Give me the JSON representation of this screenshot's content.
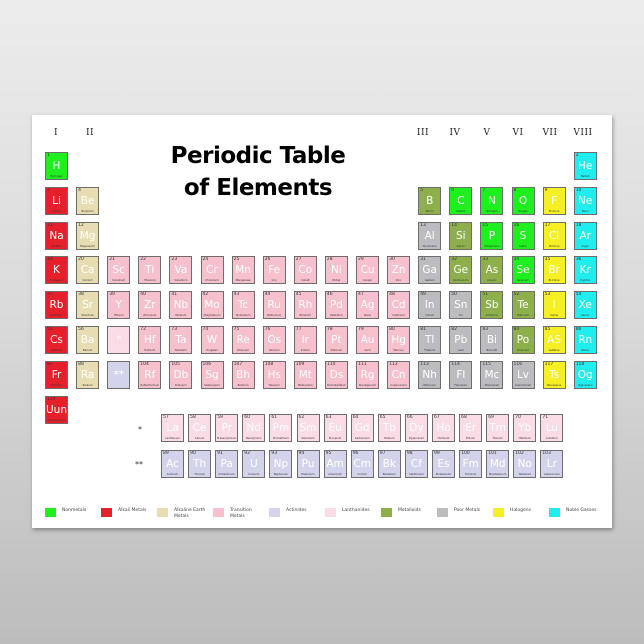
{
  "title": {
    "line1": "Periodic Table",
    "line2": "of Elements"
  },
  "groups": [
    "I",
    "II",
    "III",
    "IV",
    "V",
    "VI",
    "VII",
    "VIII"
  ],
  "colors": {
    "nonmetal": "#1fee1f",
    "alkali": "#e6202a",
    "alkaline": "#e8ddb2",
    "transition": "#f6c1cd",
    "actinide": "#d3d3ec",
    "lanthanide": "#f9dce5",
    "metalloid": "#8db04c",
    "poor": "#bcbcc0",
    "halogen": "#f6ef23",
    "noble": "#20eeee"
  },
  "legend": [
    {
      "label": "Nonmetals",
      "category": "nonmetal"
    },
    {
      "label": "Alkali Metals",
      "category": "alkali"
    },
    {
      "label": "Alkaline Earth Metals",
      "category": "alkaline"
    },
    {
      "label": "Transition Metals",
      "category": "transition"
    },
    {
      "label": "Actinides",
      "category": "actinide"
    },
    {
      "label": "Lanthanides",
      "category": "lanthanide"
    },
    {
      "label": "Metalloids",
      "category": "metalloid"
    },
    {
      "label": "Poor Metals",
      "category": "poor"
    },
    {
      "label": "Halogens",
      "category": "halogen"
    },
    {
      "label": "Noble Gasses",
      "category": "noble"
    }
  ],
  "series_markers": {
    "lanthanide": "*",
    "actinide": "**"
  },
  "elements": [
    [
      "1",
      "H",
      "Hydrogen",
      "nonmetal",
      1,
      1
    ],
    [
      "2",
      "He",
      "Helium",
      "noble",
      1,
      18
    ],
    [
      "3",
      "Li",
      "Lithium",
      "alkali",
      2,
      1
    ],
    [
      "4",
      "Be",
      "Beryllium",
      "alkaline",
      2,
      2
    ],
    [
      "5",
      "B",
      "Boron",
      "metalloid",
      2,
      13
    ],
    [
      "6",
      "C",
      "Carbon",
      "nonmetal",
      2,
      14
    ],
    [
      "7",
      "N",
      "Nitrogen",
      "nonmetal",
      2,
      15
    ],
    [
      "8",
      "O",
      "Oxygen",
      "nonmetal",
      2,
      16
    ],
    [
      "9",
      "F",
      "Fluorine",
      "halogen",
      2,
      17
    ],
    [
      "10",
      "Ne",
      "Neon",
      "noble",
      2,
      18
    ],
    [
      "11",
      "Na",
      "Sodium",
      "alkali",
      3,
      1
    ],
    [
      "12",
      "Mg",
      "Magnesium",
      "alkaline",
      3,
      2
    ],
    [
      "13",
      "Al",
      "Aluminium",
      "poor",
      3,
      13
    ],
    [
      "14",
      "Si",
      "Silicon",
      "metalloid",
      3,
      14
    ],
    [
      "15",
      "P",
      "Phosphorus",
      "nonmetal",
      3,
      15
    ],
    [
      "16",
      "S",
      "Sulfur",
      "nonmetal",
      3,
      16
    ],
    [
      "17",
      "Cl",
      "Chlorine",
      "halogen",
      3,
      17
    ],
    [
      "18",
      "Ar",
      "Argon",
      "noble",
      3,
      18
    ],
    [
      "19",
      "K",
      "Potassium",
      "alkali",
      4,
      1
    ],
    [
      "20",
      "Ca",
      "Calcium",
      "alkaline",
      4,
      2
    ],
    [
      "21",
      "Sc",
      "Scandium",
      "transition",
      4,
      3
    ],
    [
      "22",
      "Ti",
      "Titanium",
      "transition",
      4,
      4
    ],
    [
      "23",
      "Va",
      "Vanadium",
      "transition",
      4,
      5
    ],
    [
      "24",
      "Cr",
      "Chromium",
      "transition",
      4,
      6
    ],
    [
      "25",
      "Mn",
      "Manganese",
      "transition",
      4,
      7
    ],
    [
      "26",
      "Fe",
      "Iron",
      "transition",
      4,
      8
    ],
    [
      "27",
      "Co",
      "Cobalt",
      "transition",
      4,
      9
    ],
    [
      "28",
      "Ni",
      "Nickel",
      "transition",
      4,
      10
    ],
    [
      "29",
      "Cu",
      "Copper",
      "transition",
      4,
      11
    ],
    [
      "30",
      "Zn",
      "Zinc",
      "transition",
      4,
      12
    ],
    [
      "31",
      "Ga",
      "Gallium",
      "poor",
      4,
      13
    ],
    [
      "32",
      "Ge",
      "Germanium",
      "metalloid",
      4,
      14
    ],
    [
      "33",
      "As",
      "Arsenic",
      "metalloid",
      4,
      15
    ],
    [
      "34",
      "Se",
      "Selenium",
      "nonmetal",
      4,
      16
    ],
    [
      "35",
      "Br",
      "Bromine",
      "halogen",
      4,
      17
    ],
    [
      "36",
      "Kr",
      "Krypton",
      "noble",
      4,
      18
    ],
    [
      "37",
      "Rb",
      "Rubidium",
      "alkali",
      5,
      1
    ],
    [
      "38",
      "Sr",
      "Strontium",
      "alkaline",
      5,
      2
    ],
    [
      "39",
      "Y",
      "Yttrium",
      "transition",
      5,
      3
    ],
    [
      "40",
      "Zr",
      "Zirconium",
      "transition",
      5,
      4
    ],
    [
      "41",
      "Nb",
      "Niobium",
      "transition",
      5,
      5
    ],
    [
      "42",
      "Mo",
      "Molybdenum",
      "transition",
      5,
      6
    ],
    [
      "43",
      "Tc",
      "Technetium",
      "transition",
      5,
      7
    ],
    [
      "44",
      "Ru",
      "Ruthenium",
      "transition",
      5,
      8
    ],
    [
      "45",
      "Rh",
      "Rhodium",
      "transition",
      5,
      9
    ],
    [
      "46",
      "Pd",
      "Palladium",
      "transition",
      5,
      10
    ],
    [
      "47",
      "Ag",
      "Silver",
      "transition",
      5,
      11
    ],
    [
      "48",
      "Cd",
      "Cadmium",
      "transition",
      5,
      12
    ],
    [
      "49",
      "In",
      "Indium",
      "poor",
      5,
      13
    ],
    [
      "50",
      "Sn",
      "Tin",
      "poor",
      5,
      14
    ],
    [
      "51",
      "Sb",
      "Antimony",
      "metalloid",
      5,
      15
    ],
    [
      "52",
      "Te",
      "Tellurium",
      "metalloid",
      5,
      16
    ],
    [
      "53",
      "I",
      "Iodine",
      "halogen",
      5,
      17
    ],
    [
      "54",
      "Xe",
      "Xenon",
      "noble",
      5,
      18
    ],
    [
      "55",
      "Cs",
      "Caesium",
      "alkali",
      6,
      1
    ],
    [
      "56",
      "Ba",
      "Barium",
      "alkaline",
      6,
      2
    ],
    [
      "",
      "*",
      "",
      "lanthanide",
      6,
      3
    ],
    [
      "72",
      "Hf",
      "Hafnium",
      "transition",
      6,
      4
    ],
    [
      "73",
      "Ta",
      "Tantalum",
      "transition",
      6,
      5
    ],
    [
      "74",
      "W",
      "Tungsten",
      "transition",
      6,
      6
    ],
    [
      "75",
      "Re",
      "Rhenium",
      "transition",
      6,
      7
    ],
    [
      "76",
      "Os",
      "Osmium",
      "transition",
      6,
      8
    ],
    [
      "77",
      "Ir",
      "Iridium",
      "transition",
      6,
      9
    ],
    [
      "78",
      "Pt",
      "Platinum",
      "transition",
      6,
      10
    ],
    [
      "79",
      "Au",
      "Gold",
      "transition",
      6,
      11
    ],
    [
      "80",
      "Hg",
      "Mercury",
      "transition",
      6,
      12
    ],
    [
      "81",
      "Tl",
      "Thallium",
      "poor",
      6,
      13
    ],
    [
      "82",
      "Pb",
      "Lead",
      "poor",
      6,
      14
    ],
    [
      "83",
      "Bi",
      "Bismuth",
      "poor",
      6,
      15
    ],
    [
      "84",
      "Po",
      "Polonium",
      "metalloid",
      6,
      16
    ],
    [
      "85",
      "AS",
      "Astatine",
      "halogen",
      6,
      17
    ],
    [
      "86",
      "Rn",
      "Radon",
      "noble",
      6,
      18
    ],
    [
      "87",
      "Fr",
      "Francium",
      "alkali",
      7,
      1
    ],
    [
      "88",
      "Ra",
      "Radium",
      "alkaline",
      7,
      2
    ],
    [
      "",
      "**",
      "",
      "actinide",
      7,
      3
    ],
    [
      "104",
      "Rf",
      "Rutherfordium",
      "transition",
      7,
      4
    ],
    [
      "105",
      "Db",
      "Dubnium",
      "transition",
      7,
      5
    ],
    [
      "106",
      "Sg",
      "Seaborgium",
      "transition",
      7,
      6
    ],
    [
      "107",
      "Bh",
      "Bohrium",
      "transition",
      7,
      7
    ],
    [
      "108",
      "Hs",
      "Hassium",
      "transition",
      7,
      8
    ],
    [
      "109",
      "Mt",
      "Meitnerium",
      "transition",
      7,
      9
    ],
    [
      "110",
      "Ds",
      "Darmstadtium",
      "transition",
      7,
      10
    ],
    [
      "111",
      "Rg",
      "Roentgenium",
      "transition",
      7,
      11
    ],
    [
      "112",
      "Cn",
      "Copernicium",
      "transition",
      7,
      12
    ],
    [
      "113",
      "Nh",
      "Nihonium",
      "poor",
      7,
      13
    ],
    [
      "114",
      "Fl",
      "Flerovium",
      "poor",
      7,
      14
    ],
    [
      "115",
      "Mc",
      "Moscovium",
      "poor",
      7,
      15
    ],
    [
      "116",
      "Lv",
      "Livermorium",
      "poor",
      7,
      16
    ],
    [
      "117",
      "Ts",
      "Tennessine",
      "halogen",
      7,
      17
    ],
    [
      "118",
      "Og",
      "Oganesson",
      "noble",
      7,
      18
    ],
    [
      "119",
      "Uun",
      "Ununennium",
      "alkali",
      8,
      1
    ]
  ],
  "lanthanides": [
    [
      "57",
      "La",
      "Lanthanum"
    ],
    [
      "58",
      "Ce",
      "Cerium"
    ],
    [
      "59",
      "Pr",
      "Praseodymium"
    ],
    [
      "60",
      "Nd",
      "Neodymium"
    ],
    [
      "61",
      "Pm",
      "Promethium"
    ],
    [
      "62",
      "Sm",
      "Samarium"
    ],
    [
      "63",
      "Eu",
      "Europium"
    ],
    [
      "64",
      "Gd",
      "Gadolinium"
    ],
    [
      "65",
      "Tb",
      "Terbium"
    ],
    [
      "66",
      "Dy",
      "Dysprosium"
    ],
    [
      "67",
      "Ho",
      "Holmium"
    ],
    [
      "68",
      "Er",
      "Erbium"
    ],
    [
      "69",
      "Tm",
      "Thulium"
    ],
    [
      "70",
      "Yb",
      "Ytterbium"
    ],
    [
      "71",
      "Lu",
      "Lutetium"
    ]
  ],
  "actinides": [
    [
      "89",
      "Ac",
      "Actinium"
    ],
    [
      "90",
      "Th",
      "Thorium"
    ],
    [
      "91",
      "Pa",
      "Protactinium"
    ],
    [
      "92",
      "U",
      "Uranium"
    ],
    [
      "93",
      "Np",
      "Neptunium"
    ],
    [
      "94",
      "Pu",
      "Plutonium"
    ],
    [
      "95",
      "Am",
      "Americium"
    ],
    [
      "96",
      "Cm",
      "Curium"
    ],
    [
      "97",
      "Bk",
      "Berkelium"
    ],
    [
      "98",
      "Cf",
      "Californium"
    ],
    [
      "99",
      "Es",
      "Einsteinium"
    ],
    [
      "100",
      "Fm",
      "Fermium"
    ],
    [
      "101",
      "Md",
      "Mendelevium"
    ],
    [
      "102",
      "No",
      "Nobelium"
    ],
    [
      "103",
      "Lr",
      "Lawrencium"
    ]
  ]
}
